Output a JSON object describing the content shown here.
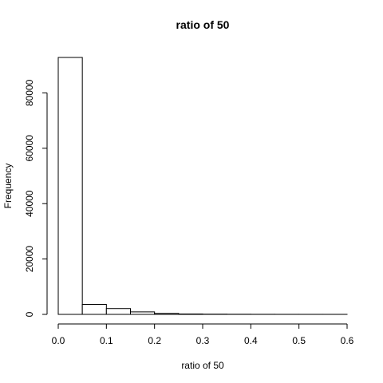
{
  "chart_data": {
    "type": "bar",
    "title": "ratio of 50",
    "xlabel": "ratio of 50",
    "ylabel": "Frequency",
    "bin_edges": [
      0.0,
      0.05,
      0.1,
      0.15,
      0.2,
      0.25,
      0.3,
      0.35,
      0.4,
      0.45,
      0.5,
      0.55,
      0.6
    ],
    "values": [
      92800,
      3600,
      2100,
      900,
      350,
      150,
      80,
      50,
      30,
      20,
      15,
      10
    ],
    "xlim": [
      0.0,
      0.6
    ],
    "ylim": [
      0,
      92800
    ],
    "x_ticks": [
      0.0,
      0.1,
      0.2,
      0.3,
      0.4,
      0.5,
      0.6
    ],
    "x_tick_labels": [
      "0.0",
      "0.1",
      "0.2",
      "0.3",
      "0.4",
      "0.5",
      "0.6"
    ],
    "y_ticks": [
      0,
      20000,
      40000,
      60000,
      80000
    ],
    "y_tick_labels": [
      "0",
      "20000",
      "40000",
      "60000",
      "80000"
    ],
    "grid": false,
    "legend": "none"
  }
}
